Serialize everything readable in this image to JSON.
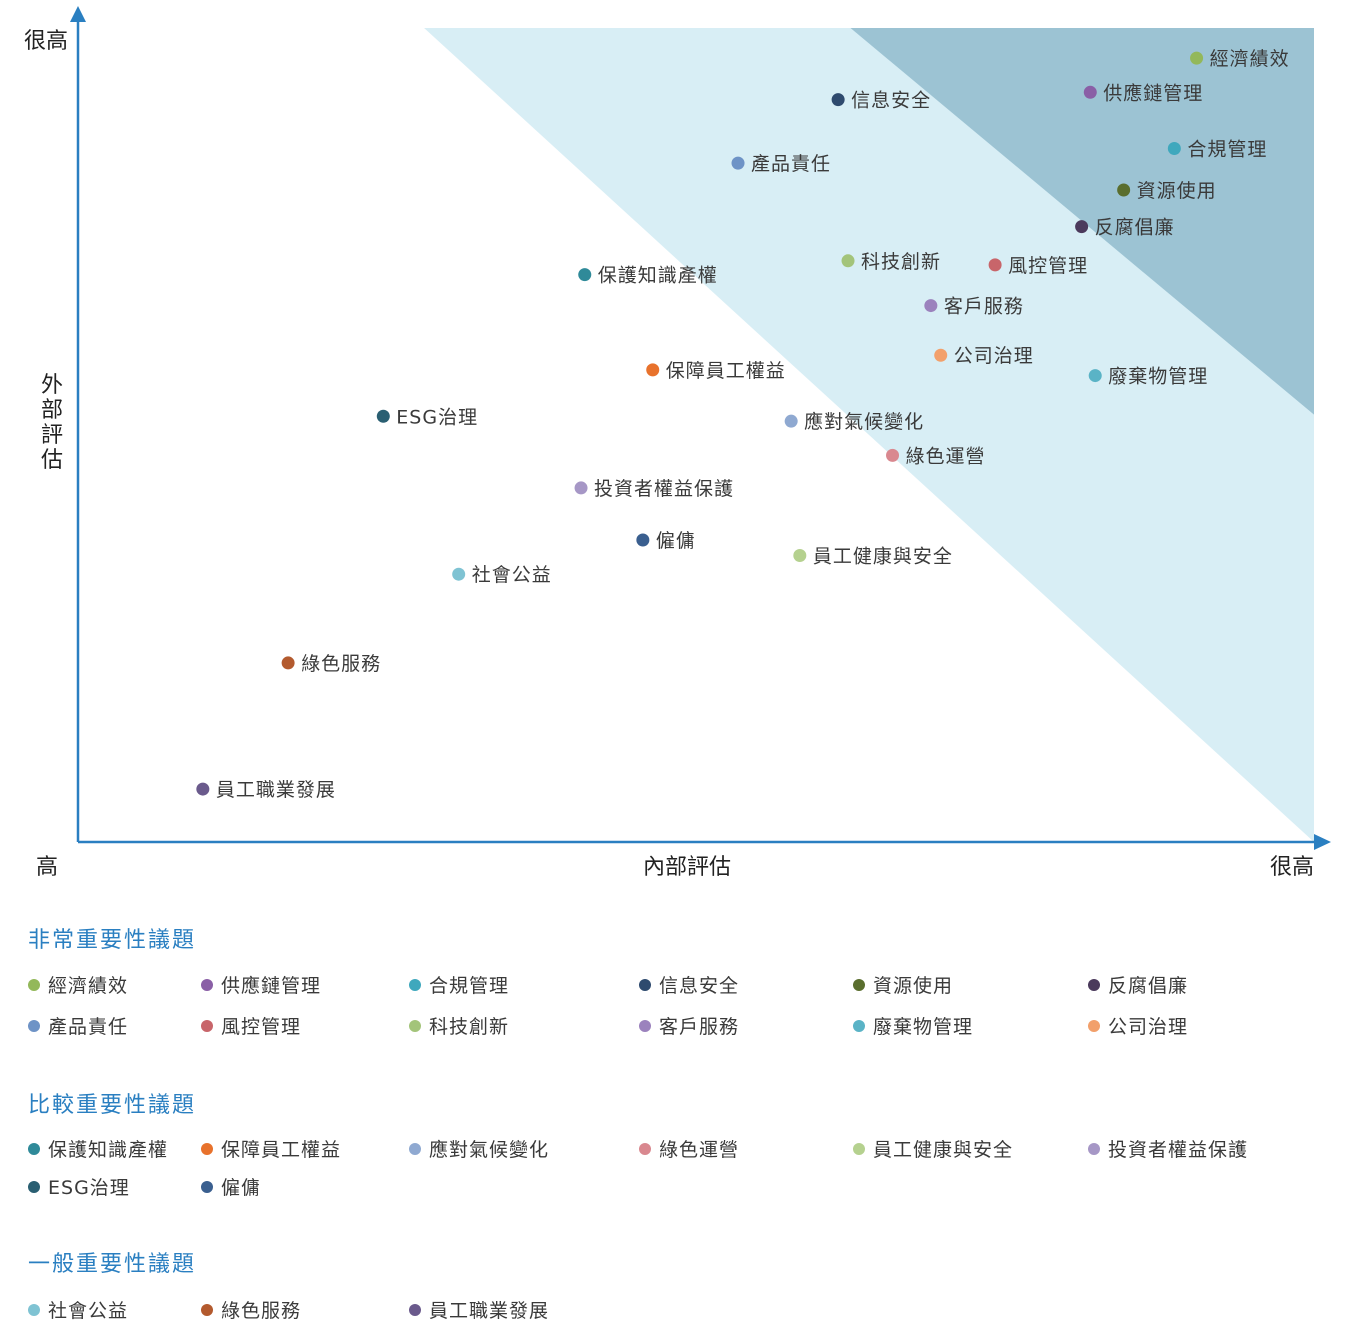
{
  "chart_data": {
    "type": "scatter",
    "xlabel": "內部評估",
    "ylabel": "外部評估",
    "x_tick_labels": [
      "高",
      "很高"
    ],
    "y_tick_labels": [
      "很高"
    ],
    "xlim": [
      0,
      100
    ],
    "ylim": [
      0,
      100
    ],
    "zones": {
      "light": {
        "color": "#d8eef5",
        "boundary_x_at_top": 28.0,
        "boundary_y_at_right": 0.0
      },
      "dark": {
        "color": "#9cc3d3",
        "boundary_x_at_top": 62.5,
        "boundary_y_at_right": 52.5
      }
    },
    "points": [
      {
        "label": "經濟績效",
        "x": 90.5,
        "y": 96.3,
        "color": "#93b85a"
      },
      {
        "label": "信息安全",
        "x": 61.5,
        "y": 91.2,
        "color": "#2e4a6e"
      },
      {
        "label": "供應鏈管理",
        "x": 81.9,
        "y": 92.1,
        "color": "#8a5fa6"
      },
      {
        "label": "產品責任",
        "x": 53.4,
        "y": 83.4,
        "color": "#6e93c6"
      },
      {
        "label": "合規管理",
        "x": 88.7,
        "y": 85.2,
        "color": "#3fa8bd"
      },
      {
        "label": "資源使用",
        "x": 84.6,
        "y": 80.1,
        "color": "#5a6e2e"
      },
      {
        "label": "反腐倡廉",
        "x": 81.2,
        "y": 75.6,
        "color": "#4b3a5c"
      },
      {
        "label": "保護知識產權",
        "x": 41.0,
        "y": 69.7,
        "color": "#2f8a99"
      },
      {
        "label": "科技創新",
        "x": 62.3,
        "y": 71.4,
        "color": "#a3c47a"
      },
      {
        "label": "風控管理",
        "x": 74.2,
        "y": 70.9,
        "color": "#c8656a"
      },
      {
        "label": "客戶服務",
        "x": 69.0,
        "y": 65.9,
        "color": "#9b82bd"
      },
      {
        "label": "保障員工權益",
        "x": 46.5,
        "y": 58.0,
        "color": "#e8722c"
      },
      {
        "label": "公司治理",
        "x": 69.8,
        "y": 59.8,
        "color": "#f2a06b"
      },
      {
        "label": "廢棄物管理",
        "x": 82.3,
        "y": 57.3,
        "color": "#5ab3c6"
      },
      {
        "label": "ESG治理",
        "x": 24.7,
        "y": 52.3,
        "color": "#2a5f72"
      },
      {
        "label": "應對氣候變化",
        "x": 57.7,
        "y": 51.7,
        "color": "#8fa9d1"
      },
      {
        "label": "綠色運營",
        "x": 65.9,
        "y": 47.5,
        "color": "#d9888f"
      },
      {
        "label": "投資者權益保護",
        "x": 40.7,
        "y": 43.5,
        "color": "#a697c6"
      },
      {
        "label": "僱傭",
        "x": 45.7,
        "y": 37.1,
        "color": "#3a5f8f"
      },
      {
        "label": "員工健康與安全",
        "x": 58.4,
        "y": 35.2,
        "color": "#b5d18f"
      },
      {
        "label": "社會公益",
        "x": 30.8,
        "y": 32.9,
        "color": "#7fc3d3"
      },
      {
        "label": "綠色服務",
        "x": 17.0,
        "y": 22.0,
        "color": "#b35a2e"
      },
      {
        "label": "員工職業發展",
        "x": 10.1,
        "y": 6.5,
        "color": "#6a5a8c"
      }
    ]
  },
  "legend": [
    {
      "title": "非常重要性議題",
      "items": [
        {
          "label": "經濟績效",
          "color": "#93b85a"
        },
        {
          "label": "供應鏈管理",
          "color": "#8a5fa6"
        },
        {
          "label": "合規管理",
          "color": "#3fa8bd"
        },
        {
          "label": "信息安全",
          "color": "#2e4a6e"
        },
        {
          "label": "資源使用",
          "color": "#5a6e2e"
        },
        {
          "label": "反腐倡廉",
          "color": "#4b3a5c"
        },
        {
          "label": "產品責任",
          "color": "#6e93c6"
        },
        {
          "label": "風控管理",
          "color": "#c8656a"
        },
        {
          "label": "科技創新",
          "color": "#a3c47a"
        },
        {
          "label": "客戶服務",
          "color": "#9b82bd"
        },
        {
          "label": "廢棄物管理",
          "color": "#5ab3c6"
        },
        {
          "label": "公司治理",
          "color": "#f2a06b"
        }
      ]
    },
    {
      "title": "比較重要性議題",
      "items": [
        {
          "label": "保護知識產權",
          "color": "#2f8a99"
        },
        {
          "label": "保障員工權益",
          "color": "#e8722c"
        },
        {
          "label": "應對氣候變化",
          "color": "#8fa9d1"
        },
        {
          "label": "綠色運營",
          "color": "#d9888f"
        },
        {
          "label": "員工健康與安全",
          "color": "#b5d18f"
        },
        {
          "label": "投資者權益保護",
          "color": "#a697c6"
        },
        {
          "label": "ESG治理",
          "color": "#2a5f72"
        },
        {
          "label": "僱傭",
          "color": "#3a5f8f"
        }
      ]
    },
    {
      "title": "一般重要性議題",
      "items": [
        {
          "label": "社會公益",
          "color": "#7fc3d3"
        },
        {
          "label": "綠色服務",
          "color": "#b35a2e"
        },
        {
          "label": "員工職業發展",
          "color": "#6a5a8c"
        }
      ]
    }
  ],
  "colors": {
    "axis": "#2a7fc1",
    "legend_title": "#2a7fc1"
  }
}
